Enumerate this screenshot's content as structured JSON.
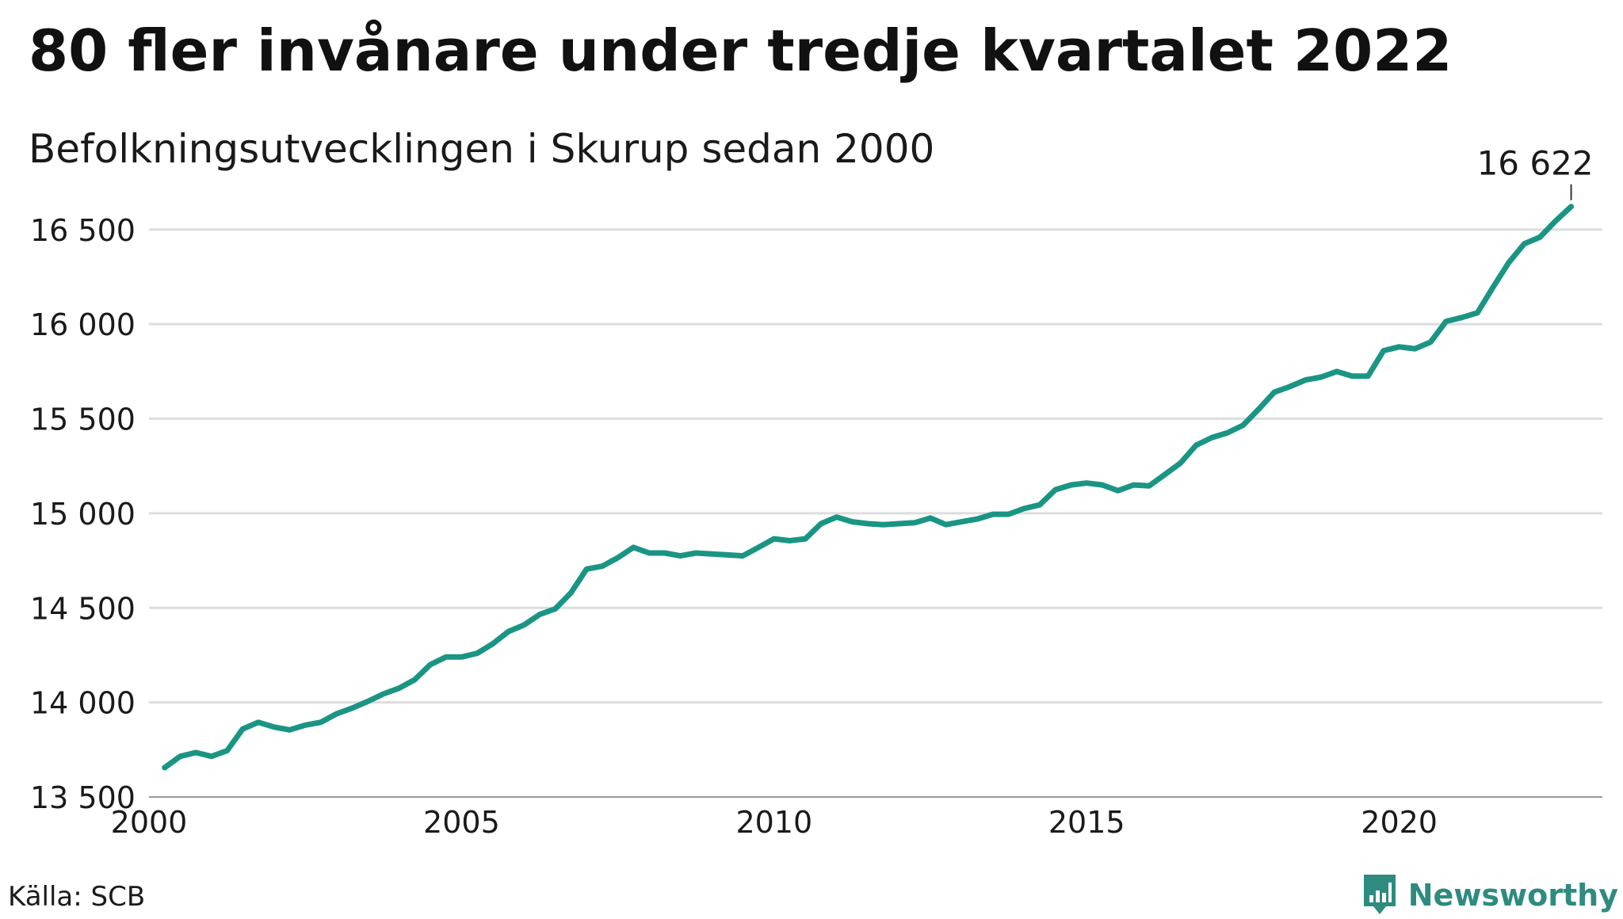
{
  "title": "80 fler invånare under tredje kvartalet 2022",
  "subtitle": "Befolkningsutvecklingen i Skurup sedan 2000",
  "source": "Källa: SCB",
  "brand": "Newsworthy",
  "colors": {
    "line": "#1a9584",
    "grid": "#dddddd",
    "brand": "#2e8b7f",
    "text": "#1a1a1a"
  },
  "chart_data": {
    "type": "line",
    "title": "80 fler invånare under tredje kvartalet 2022",
    "subtitle": "Befolkningsutvecklingen i Skurup sedan 2000",
    "xlabel": "",
    "ylabel": "",
    "xlim": [
      2000,
      2023.25
    ],
    "ylim": [
      13500,
      16650
    ],
    "grid": true,
    "x_ticks": [
      2000,
      2005,
      2010,
      2015,
      2020
    ],
    "x_tick_labels": [
      "2000",
      "2005",
      "2010",
      "2015",
      "2020"
    ],
    "y_ticks": [
      13500,
      14000,
      14500,
      15000,
      15500,
      16000,
      16500
    ],
    "y_tick_labels": [
      "13 500",
      "14 000",
      "14 500",
      "15 000",
      "15 500",
      "16 000",
      "16 500"
    ],
    "x_unit": "quarter end (decimal years)",
    "series": [
      {
        "x": [
          2000.25,
          2000.5,
          2000.75,
          2001.0,
          2001.25,
          2001.5,
          2001.75,
          2002.0,
          2002.25,
          2002.5,
          2002.75,
          2003.0,
          2003.25,
          2003.5,
          2003.75,
          2004.0,
          2004.25,
          2004.5,
          2004.75,
          2005.0,
          2005.25,
          2005.5,
          2005.75,
          2006.0,
          2006.25,
          2006.5,
          2006.75,
          2007.0,
          2007.25,
          2007.5,
          2007.75,
          2008.0,
          2008.25,
          2008.5,
          2008.75,
          2009.0,
          2009.25,
          2009.5,
          2009.75,
          2010.0,
          2010.25,
          2010.5,
          2010.75,
          2011.0,
          2011.25,
          2011.5,
          2011.75,
          2012.0,
          2012.25,
          2012.5,
          2012.75,
          2013.0,
          2013.25,
          2013.5,
          2013.75,
          2014.0,
          2014.25,
          2014.5,
          2014.75,
          2015.0,
          2015.25,
          2015.5,
          2015.75,
          2016.0,
          2016.25,
          2016.5,
          2016.75,
          2017.0,
          2017.25,
          2017.5,
          2017.75,
          2018.0,
          2018.25,
          2018.5,
          2018.75,
          2019.0,
          2019.25,
          2019.5,
          2019.75,
          2020.0,
          2020.25,
          2020.5,
          2020.75,
          2021.0,
          2021.25,
          2021.5,
          2021.75,
          2022.0,
          2022.25,
          2022.5,
          2022.75
        ],
        "values": [
          13655,
          13715,
          13735,
          13715,
          13745,
          13860,
          13895,
          13870,
          13855,
          13880,
          13895,
          13940,
          13970,
          14005,
          14045,
          14075,
          14120,
          14200,
          14240,
          14240,
          14260,
          14310,
          14375,
          14410,
          14465,
          14495,
          14580,
          14705,
          14720,
          14765,
          14820,
          14790,
          14790,
          14775,
          14790,
          14785,
          14780,
          14775,
          14820,
          14865,
          14855,
          14865,
          14945,
          14980,
          14955,
          14945,
          14940,
          14945,
          14950,
          14975,
          14940,
          14955,
          14970,
          14995,
          14995,
          15025,
          15045,
          15125,
          15150,
          15160,
          15150,
          15120,
          15150,
          15145,
          15205,
          15265,
          15360,
          15400,
          15425,
          15465,
          15550,
          15640,
          15670,
          15705,
          15720,
          15750,
          15725,
          15725,
          15860,
          15880,
          15870,
          15905,
          16015,
          16035,
          16060,
          16195,
          16325,
          16425,
          16460,
          16545,
          16622
        ]
      }
    ],
    "annotations": [
      {
        "text": "16 622",
        "x": 2022.75,
        "y": 16622
      }
    ]
  }
}
